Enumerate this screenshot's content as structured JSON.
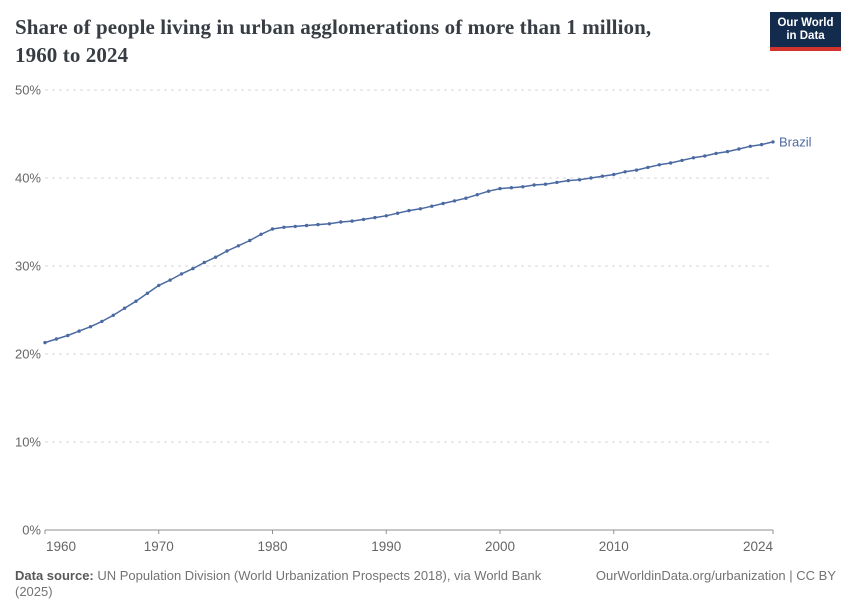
{
  "header": {
    "title_line1": "Share of people living in urban agglomerations of more than 1 million,",
    "title_line2": "1960 to 2024",
    "logo": {
      "line1": "Our World",
      "line2": "in Data"
    }
  },
  "chart_data": {
    "type": "line",
    "title": "Share of people living in urban agglomerations of more than 1 million, 1960 to 2024",
    "xlabel": "",
    "ylabel": "",
    "xlim": [
      1960,
      2024
    ],
    "ylim": [
      0,
      50
    ],
    "grid": "horizontal-dashed",
    "legend_position": "end-of-line-label",
    "yticks": [
      0,
      10,
      20,
      30,
      40,
      50
    ],
    "ytick_labels": [
      "0%",
      "10%",
      "20%",
      "30%",
      "40%",
      "50%"
    ],
    "xticks": [
      1960,
      1970,
      1980,
      1990,
      2000,
      2010,
      2024
    ],
    "xtick_labels": [
      "1960",
      "1970",
      "1980",
      "1990",
      "2000",
      "2010",
      "2024"
    ],
    "x": [
      1960,
      1961,
      1962,
      1963,
      1964,
      1965,
      1966,
      1967,
      1968,
      1969,
      1970,
      1971,
      1972,
      1973,
      1974,
      1975,
      1976,
      1977,
      1978,
      1979,
      1980,
      1981,
      1982,
      1983,
      1984,
      1985,
      1986,
      1987,
      1988,
      1989,
      1990,
      1991,
      1992,
      1993,
      1994,
      1995,
      1996,
      1997,
      1998,
      1999,
      2000,
      2001,
      2002,
      2003,
      2004,
      2005,
      2006,
      2007,
      2008,
      2009,
      2010,
      2011,
      2012,
      2013,
      2014,
      2015,
      2016,
      2017,
      2018,
      2019,
      2020,
      2021,
      2022,
      2023,
      2024
    ],
    "series": [
      {
        "name": "Brazil",
        "color": "#4c6aa2",
        "values": [
          21.3,
          21.7,
          22.1,
          22.6,
          23.1,
          23.7,
          24.4,
          25.2,
          26.0,
          26.9,
          27.8,
          28.4,
          29.1,
          29.7,
          30.4,
          31.0,
          31.7,
          32.3,
          32.9,
          33.6,
          34.2,
          34.4,
          34.5,
          34.6,
          34.7,
          34.8,
          35.0,
          35.1,
          35.3,
          35.5,
          35.7,
          36.0,
          36.3,
          36.5,
          36.8,
          37.1,
          37.4,
          37.7,
          38.1,
          38.5,
          38.8,
          38.9,
          39.0,
          39.2,
          39.3,
          39.5,
          39.7,
          39.8,
          40.0,
          40.2,
          40.4,
          40.7,
          40.9,
          41.2,
          41.5,
          41.7,
          42.0,
          42.3,
          42.5,
          42.8,
          43.0,
          43.3,
          43.6,
          43.8,
          44.1
        ]
      }
    ]
  },
  "footer": {
    "data_source_label": "Data source:",
    "data_source_text": " UN Population Division (World Urbanization Prospects 2018), via World Bank (2025)",
    "right_text": "OurWorldinData.org/urbanization | CC BY"
  },
  "colors": {
    "line": "#4c6aa2",
    "grid": "#d5d5d5",
    "axis": "#8f8f8f",
    "tick_label": "#666666",
    "title": "#383d44",
    "footer": "#737373",
    "logo_bg": "#132c4e",
    "logo_red": "#d0342c"
  }
}
